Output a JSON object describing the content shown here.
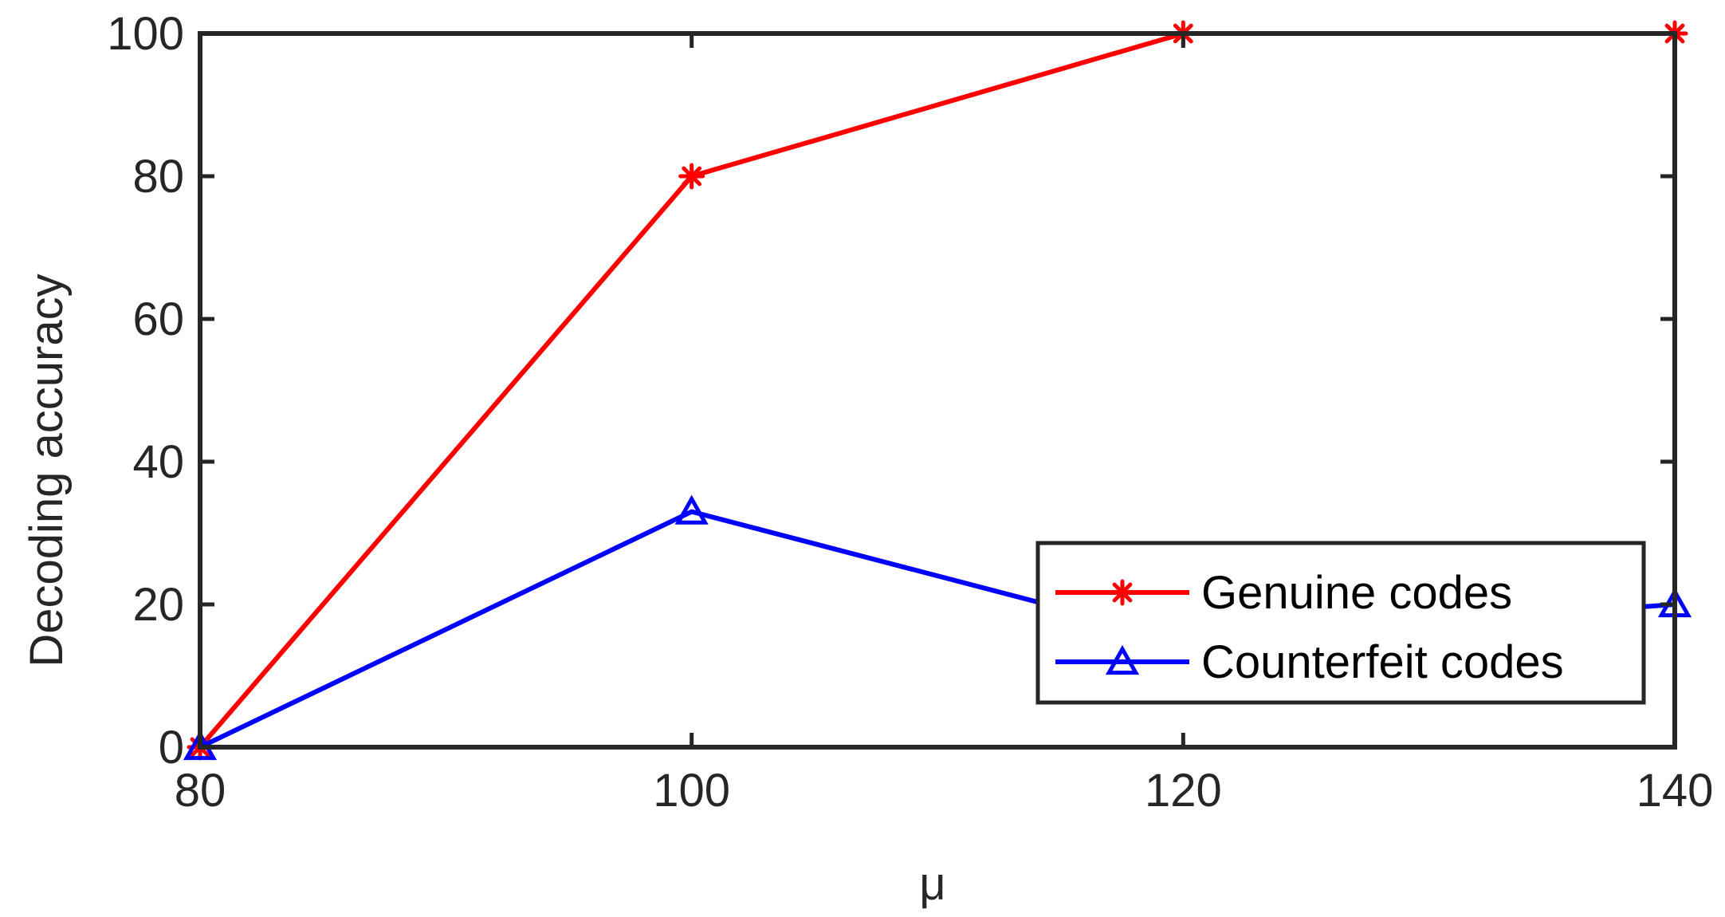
{
  "chart_data": {
    "type": "line",
    "xlabel": "μ",
    "ylabel": "Decoding accuracy",
    "xlim": [
      80,
      140
    ],
    "ylim": [
      0,
      100
    ],
    "xticks": [
      80,
      100,
      120,
      140
    ],
    "yticks": [
      0,
      20,
      40,
      60,
      80,
      100
    ],
    "grid": false,
    "legend_position": "bottom-right",
    "series": [
      {
        "name": "Genuine codes",
        "color": "#ff0000",
        "marker": "asterisk",
        "x": [
          80,
          100,
          120,
          140
        ],
        "y": [
          0,
          80,
          100,
          100
        ]
      },
      {
        "name": "Counterfeit codes",
        "color": "#0000ff",
        "marker": "triangle",
        "x": [
          80,
          100,
          120,
          140
        ],
        "y": [
          0,
          33,
          15,
          20
        ]
      }
    ]
  }
}
